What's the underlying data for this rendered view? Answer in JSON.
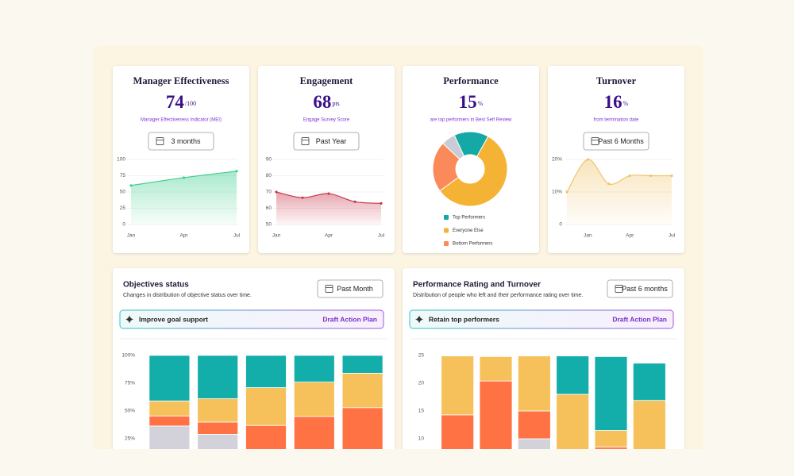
{
  "cards": [
    {
      "title": "Manager Effectiveness",
      "value": 74,
      "unit": "/100",
      "caption": "Manager Effectiveness Indicator (MEI)",
      "filter": "3 months"
    },
    {
      "title": "Engagement",
      "value": 68,
      "unit": "pts",
      "caption": "Engage Survey Score",
      "filter": "Past Year"
    },
    {
      "title": "Performance",
      "value": 15,
      "unit": "%",
      "caption": "are top performers in Best Self Review"
    },
    {
      "title": "Turnover",
      "value": 16,
      "unit": "%",
      "caption": "from termination date",
      "filter": "Past 6 Months"
    }
  ],
  "panels": [
    {
      "title": "Objectives status",
      "subtitle": "Changes in distribution of objective status over time.",
      "filter": "Past Month",
      "banner": "Improve goal support",
      "action": "Draft Action Plan"
    },
    {
      "title": "Performance Rating and Turnover",
      "subtitle": "Distribution of people who left and their performance rating over time.",
      "filter": "Past 6 months",
      "banner": "Retain top performers",
      "action": "Draft Action Plan"
    }
  ],
  "chart_data": [
    {
      "type": "area",
      "categories": [
        "Jan",
        "Apr",
        "Jul"
      ],
      "values": [
        60,
        72,
        82
      ],
      "color": "#3ecf8e",
      "ylim": [
        0,
        100
      ],
      "yticks": [
        0,
        25,
        50,
        75,
        100
      ],
      "grid": true
    },
    {
      "type": "area",
      "categories": [
        "Jan",
        null,
        "Apr",
        null,
        "Jul"
      ],
      "values": [
        70,
        66.5,
        69,
        64,
        63
      ],
      "color": "#c8374d",
      "ylim": [
        50,
        90
      ],
      "yticks": [
        50,
        60,
        70,
        80,
        90
      ],
      "grid": true
    },
    {
      "type": "pie",
      "categories": [
        "Top Performers",
        "Everyone Else",
        "Bottom Performers",
        null
      ],
      "values": [
        15,
        57,
        22,
        6
      ],
      "colors": [
        "#14a8a6",
        "#f5b335",
        "#fb8a5b",
        "#c9cbd6"
      ]
    },
    {
      "type": "area",
      "categories": [
        null,
        "Jan",
        null,
        "Apr",
        null,
        "Jul"
      ],
      "values": [
        10,
        20,
        12.5,
        15,
        15,
        15
      ],
      "color": "#f0c46a",
      "ylim": [
        0,
        20
      ],
      "yticks": [
        0,
        {
          "value": 10,
          "label": "10%"
        },
        {
          "value": 20,
          "label": "20%"
        }
      ],
      "grid": true
    },
    {
      "type": "stacked_bar",
      "ylim": [
        0,
        100
      ],
      "yticks": [
        {
          "value": 25,
          "label": "25%"
        },
        {
          "value": 50,
          "label": "50%"
        },
        {
          "value": 75,
          "label": "75%"
        },
        {
          "value": 100,
          "label": "100%"
        }
      ],
      "grid": false,
      "series": [
        {
          "color": "#d3d2da",
          "values": [
            36.5,
            29,
            0,
            0,
            0
          ]
        },
        {
          "color": "#ff7243",
          "values": [
            9,
            11,
            37,
            45,
            53
          ]
        },
        {
          "color": "#f6c15a",
          "values": [
            13.5,
            21,
            34,
            31,
            31
          ]
        },
        {
          "color": "#14aeaa",
          "values": [
            41,
            39,
            29,
            24,
            16
          ]
        }
      ]
    },
    {
      "type": "stacked_bar",
      "ylim": [
        0,
        25
      ],
      "yticks": [
        10,
        15,
        20,
        25
      ],
      "grid": false,
      "series": [
        {
          "color": "#d3d2da",
          "values": [
            0,
            0,
            10,
            0,
            8.1,
            0
          ]
        },
        {
          "color": "#ff7243",
          "values": [
            14.3,
            20.4,
            5,
            0,
            0.4,
            0
          ]
        },
        {
          "color": "#f6c15a",
          "values": [
            10.6,
            4.4,
            9.9,
            18,
            3,
            16.9
          ]
        },
        {
          "color": "#14aeaa",
          "values": [
            0,
            0,
            0,
            6.9,
            13.3,
            6.7
          ]
        }
      ]
    }
  ]
}
